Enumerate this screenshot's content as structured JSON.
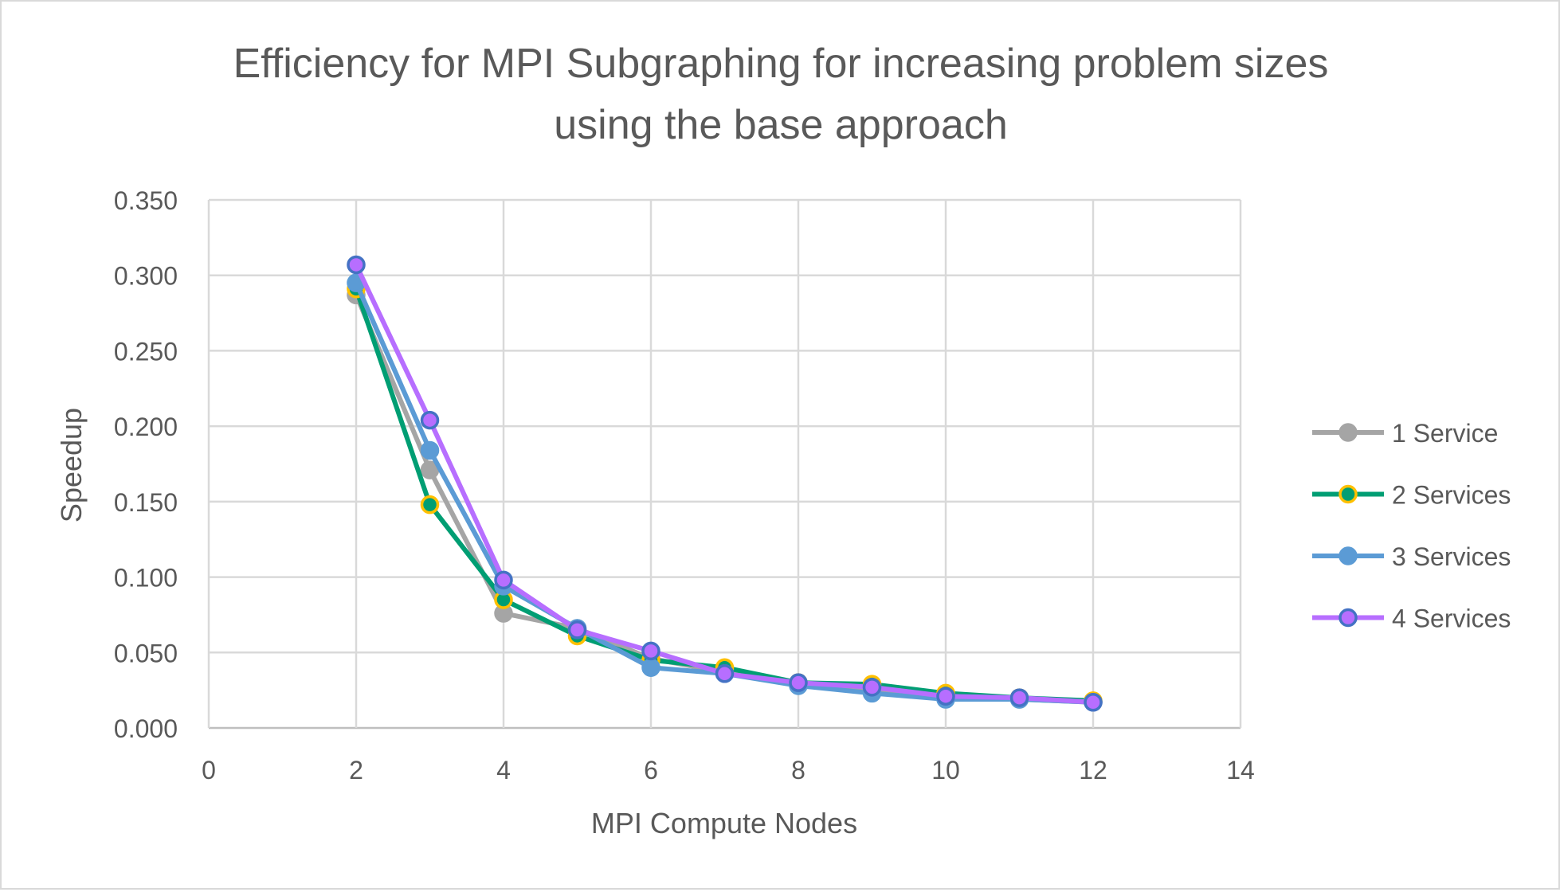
{
  "chart_data": {
    "type": "line",
    "title_lines": [
      "Efficiency for MPI Subgraphing for increasing problem sizes",
      "using the base approach"
    ],
    "xlabel": "MPI Compute Nodes",
    "ylabel": "Speedup",
    "xlim": [
      0,
      14
    ],
    "ylim": [
      0,
      0.35
    ],
    "xticks": [
      "0",
      "2",
      "4",
      "6",
      "8",
      "10",
      "12",
      "14"
    ],
    "yticks": [
      "0.000",
      "0.050",
      "0.100",
      "0.150",
      "0.200",
      "0.250",
      "0.300",
      "0.350"
    ],
    "grid": true,
    "legend_position": "right",
    "x": [
      2,
      3,
      4,
      5,
      6,
      7,
      8,
      9,
      10,
      11,
      12
    ],
    "series": [
      {
        "name": "1 Service",
        "color": "#a5a5a5",
        "marker_edge": "#a5a5a5",
        "values": [
          0.287,
          0.171,
          0.076,
          0.066,
          0.046,
          0.037,
          0.03,
          0.026,
          0.021,
          0.019,
          0.017
        ]
      },
      {
        "name": "2 Services",
        "color": "#009e73",
        "marker_edge": "#ffc000",
        "values": [
          0.291,
          0.148,
          0.085,
          0.061,
          0.045,
          0.04,
          0.03,
          0.029,
          0.023,
          0.02,
          0.018
        ]
      },
      {
        "name": "3 Services",
        "color": "#5b9bd5",
        "marker_edge": "#5b9bd5",
        "values": [
          0.295,
          0.184,
          0.094,
          0.066,
          0.04,
          0.036,
          0.028,
          0.023,
          0.019,
          0.019,
          0.017
        ]
      },
      {
        "name": "4 Services",
        "color": "#b76eff",
        "marker_edge": "#4472c4",
        "values": [
          0.307,
          0.204,
          0.098,
          0.065,
          0.051,
          0.036,
          0.03,
          0.027,
          0.021,
          0.02,
          0.017
        ]
      }
    ]
  }
}
